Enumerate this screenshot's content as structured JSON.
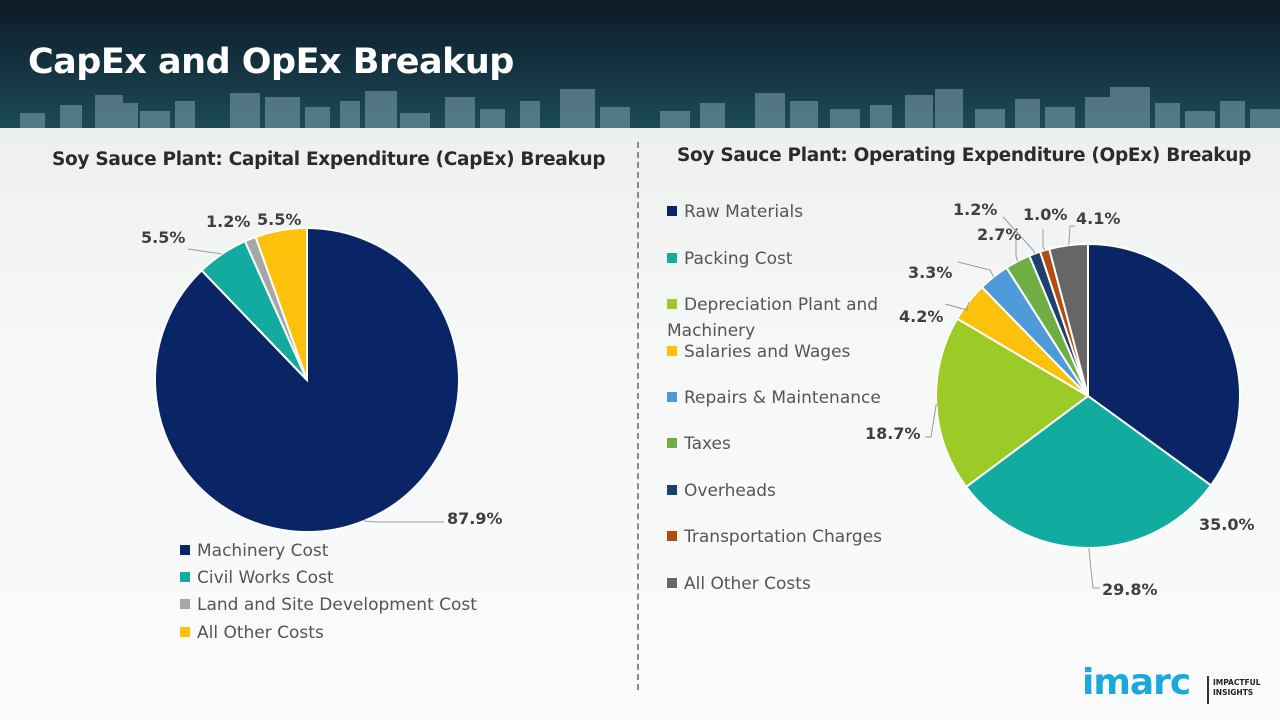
{
  "header": {
    "title": "CapEx and OpEx Breakup"
  },
  "brand": {
    "logo_text": "imarc",
    "tagline_line1": "IMPACTFUL",
    "tagline_line2": "INSIGHTS",
    "color": "#1ba9dd"
  },
  "chart_data": [
    {
      "type": "pie",
      "title": "Soy Sauce Plant: Capital Expenditure (CapEx) Breakup",
      "categories": [
        "Machinery Cost",
        "Civil Works Cost",
        "Land and Site Development Cost",
        "All Other Costs"
      ],
      "values": [
        87.9,
        5.5,
        1.2,
        5.5
      ],
      "data_labels": [
        "87.9%",
        "5.5%",
        "1.2%",
        "5.5%"
      ],
      "colors": [
        "#0a2566",
        "#12aba0",
        "#a6a6a6",
        "#fcc10a"
      ],
      "legend_position": "bottom",
      "start": "top-clockwise"
    },
    {
      "type": "pie",
      "title": "Soy Sauce Plant: Operating Expenditure (OpEx) Breakup",
      "categories": [
        "Raw Materials",
        "Packing Cost",
        "Depreciation Plant and Machinery",
        "Salaries and Wages",
        "Repairs & Maintenance",
        "Taxes",
        "Overheads",
        "Transportation Charges",
        "All Other Costs"
      ],
      "values": [
        35.0,
        29.8,
        18.7,
        4.2,
        3.3,
        2.7,
        1.2,
        1.0,
        4.1
      ],
      "data_labels": [
        "35.0%",
        "29.8%",
        "18.7%",
        "4.2%",
        "3.3%",
        "2.7%",
        "1.2%",
        "1.0%",
        "4.1%"
      ],
      "colors": [
        "#0a2566",
        "#12aba0",
        "#9ccb27",
        "#fcc10a",
        "#4f9ad8",
        "#6fae43",
        "#1f3f6e",
        "#b14d0f",
        "#666666"
      ],
      "legend_position": "left",
      "start": "top-clockwise"
    }
  ]
}
